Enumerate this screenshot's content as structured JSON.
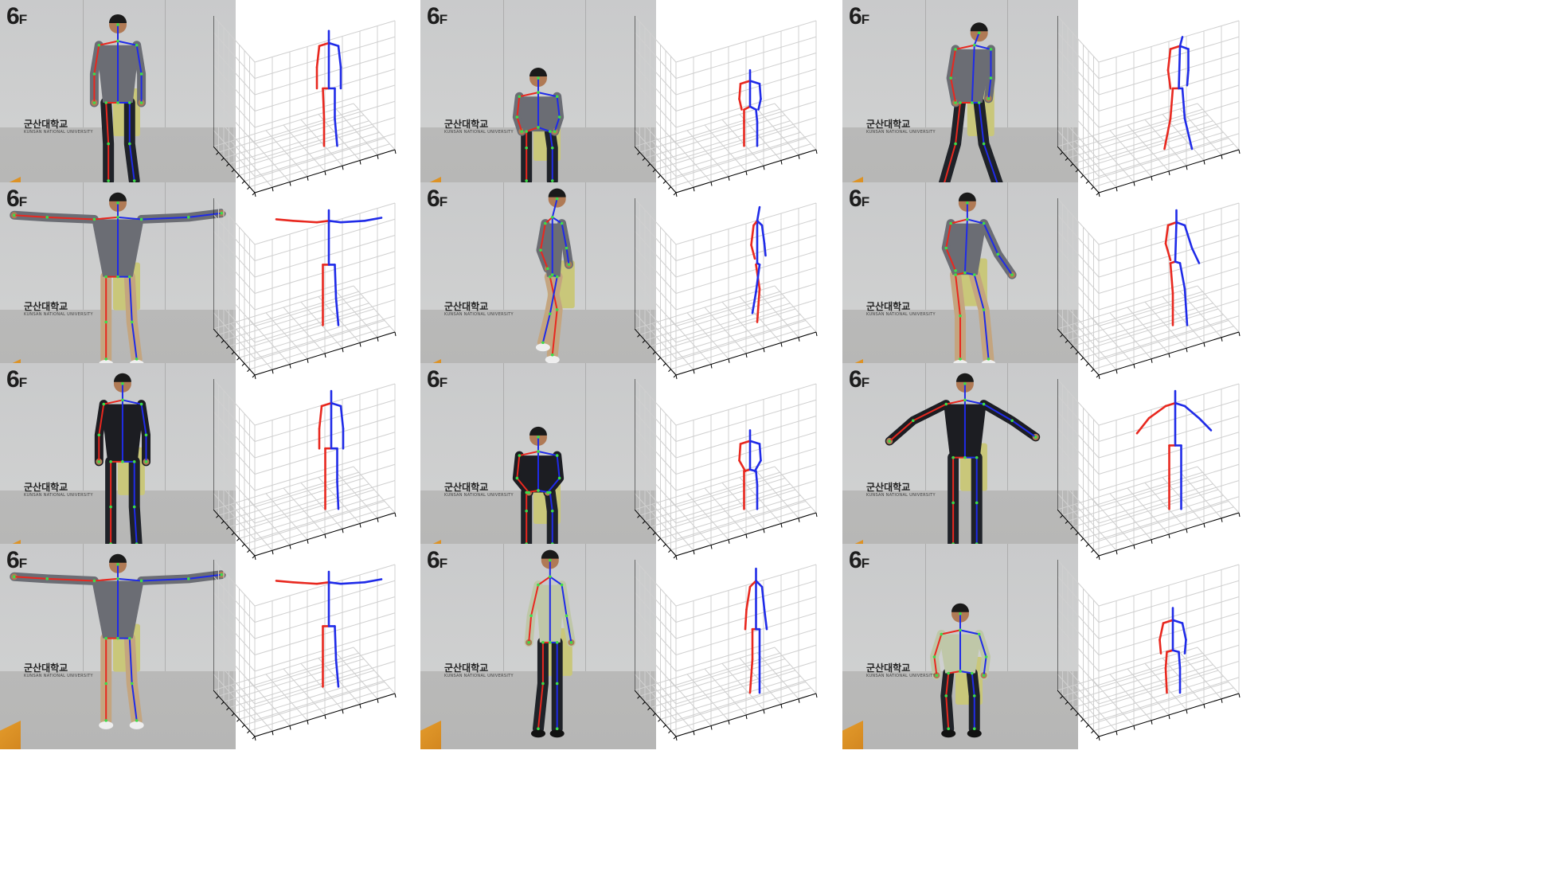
{
  "cells": [
    {
      "sign_main": "6",
      "sign_sub": "F",
      "logo": "군산대학교",
      "logo_sub": "KUNSAN NATIONAL UNIVERSITY",
      "pose": "stand"
    },
    {
      "sign_main": "6",
      "sign_sub": "F",
      "logo": "군산대학교",
      "logo_sub": "KUNSAN NATIONAL UNIVERSITY",
      "pose": "sit"
    },
    {
      "sign_main": "6",
      "sign_sub": "F",
      "logo": "군산대학교",
      "logo_sub": "KUNSAN NATIONAL UNIVERSITY",
      "pose": "walk"
    },
    {
      "sign_main": "6",
      "sign_sub": "F",
      "logo": "군산대학교",
      "logo_sub": "KUNSAN NATIONAL UNIVERSITY",
      "pose": "tpose"
    },
    {
      "sign_main": "6",
      "sign_sub": "F",
      "logo": "군산대학교",
      "logo_sub": "KUNSAN NATIONAL UNIVERSITY",
      "pose": "side"
    },
    {
      "sign_main": "6",
      "sign_sub": "F",
      "logo": "군산대학교",
      "logo_sub": "KUNSAN NATIONAL UNIVERSITY",
      "pose": "step"
    },
    {
      "sign_main": "6",
      "sign_sub": "F",
      "logo": "군산대학교",
      "logo_sub": "KUNSAN NATIONAL UNIVERSITY",
      "pose": "stand2"
    },
    {
      "sign_main": "6",
      "sign_sub": "F",
      "logo": "군산대학교",
      "logo_sub": "KUNSAN NATIONAL UNIVERSITY",
      "pose": "sit2"
    },
    {
      "sign_main": "6",
      "sign_sub": "F",
      "logo": "군산대학교",
      "logo_sub": "KUNSAN NATIONAL UNIVERSITY",
      "pose": "spread"
    },
    {
      "sign_main": "6",
      "sign_sub": "F",
      "logo": "군산대학교",
      "logo_sub": "KUNSAN NATIONAL UNIVERSITY",
      "pose": "tpose"
    },
    {
      "sign_main": "6",
      "sign_sub": "F",
      "logo": "군산대학교",
      "logo_sub": "KUNSAN NATIONAL UNIVERSITY",
      "pose": "side2"
    },
    {
      "sign_main": "6",
      "sign_sub": "F",
      "logo": "군산대학교",
      "logo_sub": "KUNSAN NATIONAL UNIVERSITY",
      "pose": "sit3"
    }
  ],
  "colors": {
    "left_limb": "#e8281f",
    "right_limb": "#1f2be8",
    "grid": "#d0d0d0",
    "axis": "#000000",
    "shirt_gray": "#6b6d74",
    "shirt_black": "#1c1d22",
    "shirt_stripe": "#bfc7a8",
    "pants_dark": "#1f2228",
    "pants_khaki": "#c4a57f",
    "skin": "#b07a55"
  }
}
